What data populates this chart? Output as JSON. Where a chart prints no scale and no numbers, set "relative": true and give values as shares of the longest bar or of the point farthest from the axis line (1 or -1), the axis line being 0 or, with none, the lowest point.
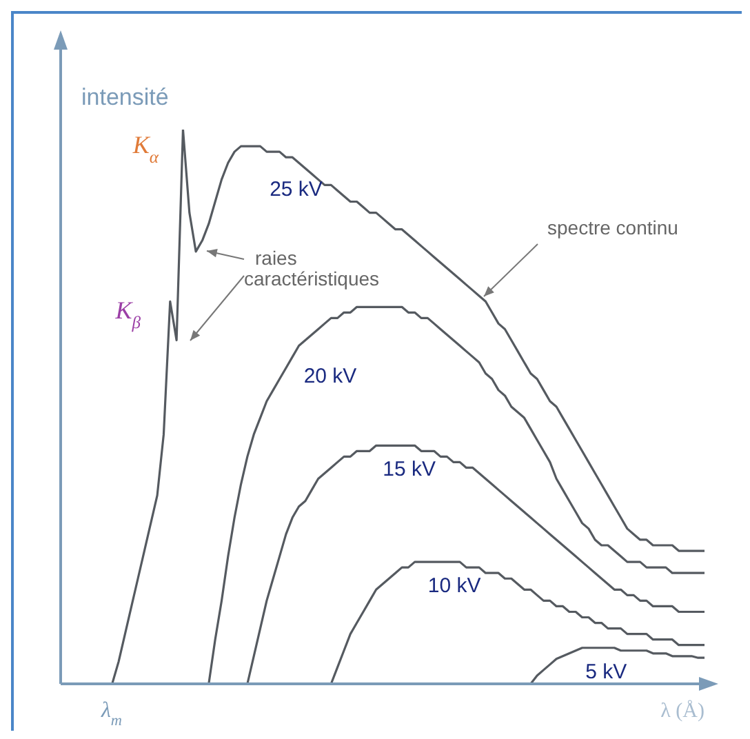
{
  "chart_data": {
    "type": "line",
    "relative": true,
    "ylabel": "intensité",
    "xlabel": "λ (Å)",
    "marker": "none",
    "line_style": "solid",
    "categories": [
      null,
      null,
      null,
      null,
      null,
      null,
      null,
      null,
      null,
      null,
      null,
      null,
      null,
      null,
      null,
      null,
      null,
      null,
      null,
      null,
      null,
      null,
      null,
      null,
      null,
      null,
      null,
      null,
      null,
      null,
      null,
      null,
      null,
      null,
      null,
      null,
      null,
      null,
      null,
      null,
      null,
      null,
      null,
      null,
      null,
      null,
      null,
      null,
      null,
      null,
      null,
      null,
      null,
      null,
      null,
      null,
      null,
      null,
      null,
      null,
      null,
      null,
      null,
      null,
      null,
      null,
      null,
      null,
      null,
      null,
      null,
      null,
      null,
      null,
      null,
      null,
      null,
      null,
      null,
      null,
      null,
      null,
      null,
      null,
      null,
      null,
      null,
      null,
      null,
      null,
      null,
      null,
      null,
      null,
      null,
      null,
      null,
      null,
      null,
      null,
      null
    ],
    "series": [
      {
        "name": "25 kV",
        "color": "#555a60",
        "values": [
          null,
          null,
          null,
          null,
          null,
          null,
          null,
          null,
          0,
          0.04,
          0.09,
          0.14,
          0.19,
          0.24,
          0.29,
          0.34,
          0.45,
          0.69,
          0.62,
          1.0,
          0.85,
          0.78,
          0.8,
          0.83,
          0.87,
          0.91,
          0.94,
          0.96,
          0.97,
          0.97,
          0.97,
          0.97,
          0.96,
          0.96,
          0.96,
          0.95,
          0.95,
          0.94,
          0.93,
          0.92,
          0.91,
          0.9,
          0.9,
          0.89,
          0.88,
          0.87,
          0.87,
          0.86,
          0.85,
          0.85,
          0.84,
          0.83,
          0.82,
          0.82,
          0.81,
          0.8,
          0.79,
          0.78,
          0.77,
          0.76,
          0.75,
          0.74,
          0.73,
          0.72,
          0.71,
          0.7,
          0.69,
          0.67,
          0.65,
          0.64,
          0.62,
          0.6,
          0.58,
          0.56,
          0.55,
          0.53,
          0.51,
          0.5,
          0.48,
          0.46,
          0.44,
          0.42,
          0.4,
          0.38,
          0.36,
          0.34,
          0.32,
          0.3,
          0.28,
          0.27,
          0.26,
          0.26,
          0.25,
          0.25,
          0.25,
          0.25,
          0.24,
          0.24,
          0.24,
          0.24,
          0.24
        ]
      },
      {
        "name": "20 kV",
        "color": "#555a60",
        "values": [
          null,
          null,
          null,
          null,
          null,
          null,
          null,
          null,
          null,
          null,
          null,
          null,
          null,
          null,
          null,
          null,
          null,
          null,
          null,
          null,
          null,
          null,
          null,
          0,
          0.08,
          0.15,
          0.23,
          0.3,
          0.36,
          0.41,
          0.45,
          0.48,
          0.51,
          0.53,
          0.55,
          0.57,
          0.59,
          0.61,
          0.62,
          0.63,
          0.64,
          0.65,
          0.66,
          0.66,
          0.67,
          0.67,
          0.68,
          0.68,
          0.68,
          0.68,
          0.68,
          0.68,
          0.68,
          0.68,
          0.67,
          0.67,
          0.66,
          0.66,
          0.65,
          0.64,
          0.63,
          0.62,
          0.61,
          0.6,
          0.59,
          0.58,
          0.56,
          0.55,
          0.53,
          0.52,
          0.5,
          0.49,
          0.48,
          0.46,
          0.44,
          0.42,
          0.4,
          0.37,
          0.35,
          0.33,
          0.31,
          0.29,
          0.28,
          0.26,
          0.25,
          0.25,
          0.24,
          0.23,
          0.22,
          0.22,
          0.22,
          0.21,
          0.21,
          0.21,
          0.21,
          0.2,
          0.2,
          0.2,
          0.2,
          0.2,
          0.2
        ]
      },
      {
        "name": "15 kV",
        "color": "#555a60",
        "values": [
          null,
          null,
          null,
          null,
          null,
          null,
          null,
          null,
          null,
          null,
          null,
          null,
          null,
          null,
          null,
          null,
          null,
          null,
          null,
          null,
          null,
          null,
          null,
          null,
          null,
          null,
          null,
          null,
          null,
          0,
          0.05,
          0.1,
          0.15,
          0.19,
          0.23,
          0.27,
          0.3,
          0.32,
          0.33,
          0.35,
          0.37,
          0.38,
          0.39,
          0.4,
          0.41,
          0.41,
          0.42,
          0.42,
          0.42,
          0.43,
          0.43,
          0.43,
          0.43,
          0.43,
          0.43,
          0.43,
          0.42,
          0.42,
          0.42,
          0.41,
          0.41,
          0.4,
          0.4,
          0.39,
          0.39,
          0.38,
          0.37,
          0.36,
          0.35,
          0.34,
          0.33,
          0.32,
          0.31,
          0.3,
          0.29,
          0.28,
          0.27,
          0.26,
          0.25,
          0.24,
          0.23,
          0.22,
          0.21,
          0.2,
          0.19,
          0.18,
          0.17,
          0.17,
          0.16,
          0.16,
          0.15,
          0.15,
          0.14,
          0.14,
          0.14,
          0.14,
          0.13,
          0.13,
          0.13,
          0.13,
          0.13
        ]
      },
      {
        "name": "10 kV",
        "color": "#555a60",
        "values": [
          null,
          null,
          null,
          null,
          null,
          null,
          null,
          null,
          null,
          null,
          null,
          null,
          null,
          null,
          null,
          null,
          null,
          null,
          null,
          null,
          null,
          null,
          null,
          null,
          null,
          null,
          null,
          null,
          null,
          null,
          null,
          null,
          null,
          null,
          null,
          null,
          null,
          null,
          null,
          null,
          null,
          null,
          0,
          0.03,
          0.06,
          0.09,
          0.11,
          0.13,
          0.15,
          0.17,
          0.18,
          0.19,
          0.2,
          0.21,
          0.21,
          0.22,
          0.22,
          0.22,
          0.22,
          0.22,
          0.22,
          0.22,
          0.22,
          0.21,
          0.21,
          0.21,
          0.2,
          0.2,
          0.2,
          0.19,
          0.19,
          0.18,
          0.17,
          0.17,
          0.16,
          0.15,
          0.15,
          0.14,
          0.14,
          0.13,
          0.13,
          0.12,
          0.12,
          0.11,
          0.11,
          0.1,
          0.1,
          0.1,
          0.09,
          0.09,
          0.09,
          0.09,
          0.08,
          0.08,
          0.08,
          0.08,
          0.07,
          0.07,
          0.07,
          0.07,
          0.07
        ]
      },
      {
        "name": "5 kV",
        "color": "#555a60",
        "values": [
          null,
          null,
          null,
          null,
          null,
          null,
          null,
          null,
          null,
          null,
          null,
          null,
          null,
          null,
          null,
          null,
          null,
          null,
          null,
          null,
          null,
          null,
          null,
          null,
          null,
          null,
          null,
          null,
          null,
          null,
          null,
          null,
          null,
          null,
          null,
          null,
          null,
          null,
          null,
          null,
          null,
          null,
          null,
          null,
          null,
          null,
          null,
          null,
          null,
          null,
          null,
          null,
          null,
          null,
          null,
          null,
          null,
          null,
          null,
          null,
          null,
          null,
          null,
          null,
          null,
          null,
          null,
          null,
          null,
          null,
          null,
          null,
          null,
          0,
          0.015,
          0.025,
          0.035,
          0.045,
          0.05,
          0.055,
          0.06,
          0.065,
          0.065,
          0.065,
          0.065,
          0.065,
          0.065,
          0.06,
          0.06,
          0.06,
          0.06,
          0.06,
          0.055,
          0.055,
          0.055,
          0.05,
          0.05,
          0.05,
          0.05,
          0.047,
          0.047
        ]
      }
    ],
    "annotations": [
      "K$_{α}$",
      "K$_{β}$",
      "λ$_{m}$",
      "raies caractéristiques",
      "spectre continu"
    ]
  }
}
